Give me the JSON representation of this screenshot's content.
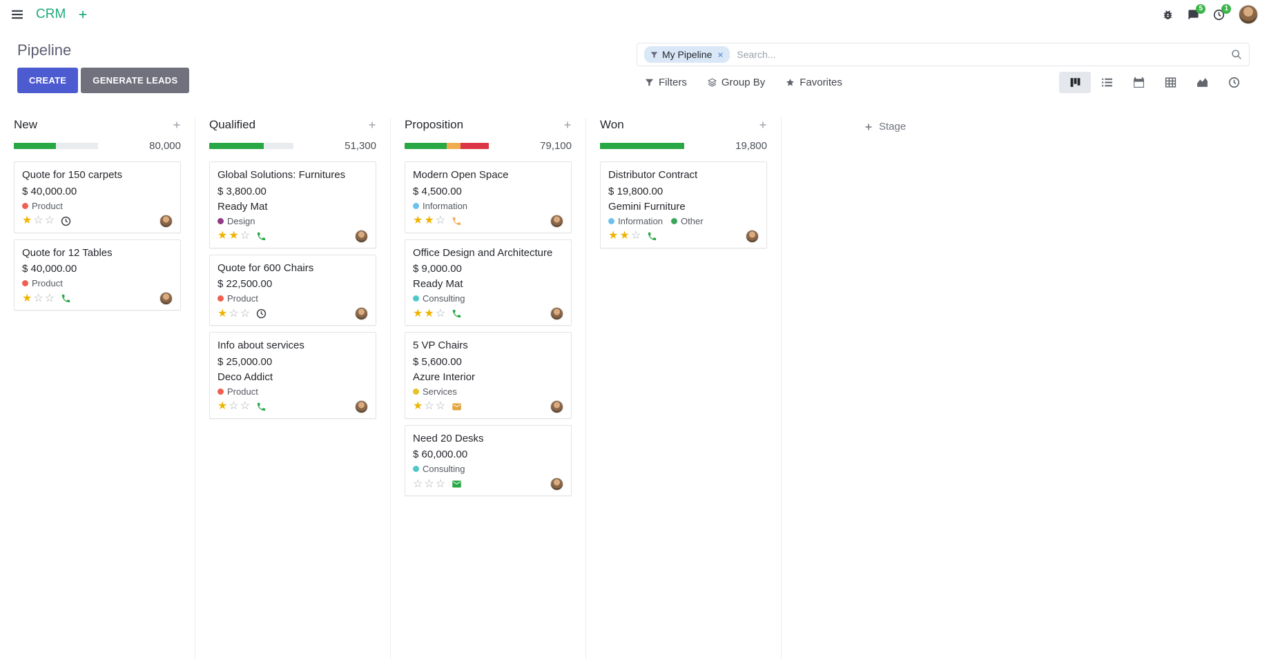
{
  "navbar": {
    "app_name": "CRM",
    "messages_badge": "5",
    "activities_badge": "1"
  },
  "control_panel": {
    "title": "Pipeline",
    "buttons": {
      "create": "CREATE",
      "generate_leads": "GENERATE LEADS"
    },
    "search": {
      "facet_label": "My Pipeline",
      "placeholder": "Search..."
    },
    "toolbar": {
      "filters": "Filters",
      "group_by": "Group By",
      "favorites": "Favorites"
    },
    "active_view": "kanban",
    "views": [
      {
        "name": "kanban",
        "icon": "kanban-icon"
      },
      {
        "name": "list",
        "icon": "list-icon"
      },
      {
        "name": "calendar",
        "icon": "calendar-icon"
      },
      {
        "name": "pivot",
        "icon": "pivot-icon"
      },
      {
        "name": "graph",
        "icon": "graph-icon"
      },
      {
        "name": "activity",
        "icon": "clock-icon"
      }
    ]
  },
  "icons": {
    "menu": "menu-icon",
    "add": "plus-icon",
    "bug": "bug-icon",
    "messages": "chat-icon",
    "activities": "clock-icon",
    "filter": "filter-icon",
    "group_by": "layers-icon",
    "favorites": "star-icon",
    "search": "search-icon",
    "facet_filter": "filter-icon",
    "remove_facet": "close-icon",
    "quick_add": "plus-icon",
    "add_stage": "plus-icon"
  },
  "colors": {
    "primary": "#4d5bd0",
    "brand_green": "#1dab79",
    "progress_green": "#28a745",
    "progress_orange": "#f0ad4e",
    "progress_red": "#dc3545",
    "badge_green": "#3bb54a"
  },
  "board": {
    "add_stage_label": "Stage",
    "columns": [
      {
        "name": "New",
        "total": "80,000",
        "progress": [
          {
            "color": "#28a745",
            "width": "50%"
          }
        ],
        "cards": [
          {
            "title": "Quote for 150 carpets",
            "amount": "$ 40,000.00",
            "tags": [
              {
                "label": "Product",
                "color": "#f06050"
              }
            ],
            "stars": 1,
            "activity_icon": "clock-icon",
            "activity_color": "#3e4248"
          },
          {
            "title": "Quote for 12 Tables",
            "amount": "$ 40,000.00",
            "tags": [
              {
                "label": "Product",
                "color": "#f06050"
              }
            ],
            "stars": 1,
            "activity_icon": "phone-icon",
            "activity_color": "#28a745"
          }
        ]
      },
      {
        "name": "Qualified",
        "total": "51,300",
        "progress": [
          {
            "color": "#28a745",
            "width": "65%"
          }
        ],
        "cards": [
          {
            "title": "Global Solutions: Furnitures",
            "amount": "$ 3,800.00",
            "partner": "Ready Mat",
            "tags": [
              {
                "label": "Design",
                "color": "#8f3a84"
              }
            ],
            "stars": 2,
            "activity_icon": "phone-icon",
            "activity_color": "#28a745"
          },
          {
            "title": "Quote for 600 Chairs",
            "amount": "$ 22,500.00",
            "tags": [
              {
                "label": "Product",
                "color": "#f06050"
              }
            ],
            "stars": 1,
            "activity_icon": "clock-icon",
            "activity_color": "#3e4248"
          },
          {
            "title": "Info about services",
            "amount": "$ 25,000.00",
            "partner": "Deco Addict",
            "tags": [
              {
                "label": "Product",
                "color": "#f06050"
              }
            ],
            "stars": 1,
            "activity_icon": "phone-icon",
            "activity_color": "#28a745"
          }
        ]
      },
      {
        "name": "Proposition",
        "total": "79,100",
        "progress": [
          {
            "color": "#28a745",
            "width": "50%"
          },
          {
            "color": "#f0ad4e",
            "width": "16%"
          },
          {
            "color": "#dc3545",
            "width": "34%"
          }
        ],
        "cards": [
          {
            "title": "Modern Open Space",
            "amount": "$ 4,500.00",
            "tags": [
              {
                "label": "Information",
                "color": "#6cc1ed"
              }
            ],
            "stars": 2,
            "activity_icon": "phone-icon",
            "activity_color": "#f0ad4e"
          },
          {
            "title": "Office Design and Architecture",
            "amount": "$ 9,000.00",
            "partner": "Ready Mat",
            "tags": [
              {
                "label": "Consulting",
                "color": "#4ec8c8"
              }
            ],
            "stars": 2,
            "activity_icon": "phone-icon",
            "activity_color": "#28a745"
          },
          {
            "title": "5 VP Chairs",
            "amount": "$ 5,600.00",
            "partner": "Azure Interior",
            "tags": [
              {
                "label": "Services",
                "color": "#e7c227"
              }
            ],
            "stars": 1,
            "activity_icon": "envelope-icon",
            "activity_color": "#e2a33d"
          },
          {
            "title": "Need 20 Desks",
            "amount": "$ 60,000.00",
            "tags": [
              {
                "label": "Consulting",
                "color": "#4ec8c8"
              }
            ],
            "stars": 0,
            "activity_icon": "envelope-icon",
            "activity_color": "#28a745"
          }
        ]
      },
      {
        "name": "Won",
        "total": "19,800",
        "progress": [
          {
            "color": "#28a745",
            "width": "100%"
          }
        ],
        "cards": [
          {
            "title": "Distributor Contract",
            "amount": "$ 19,800.00",
            "partner": "Gemini Furniture",
            "tags": [
              {
                "label": "Information",
                "color": "#6cc1ed"
              },
              {
                "label": "Other",
                "color": "#3ba55c"
              }
            ],
            "stars": 2,
            "activity_icon": "phone-icon",
            "activity_color": "#28a745"
          }
        ]
      }
    ]
  }
}
